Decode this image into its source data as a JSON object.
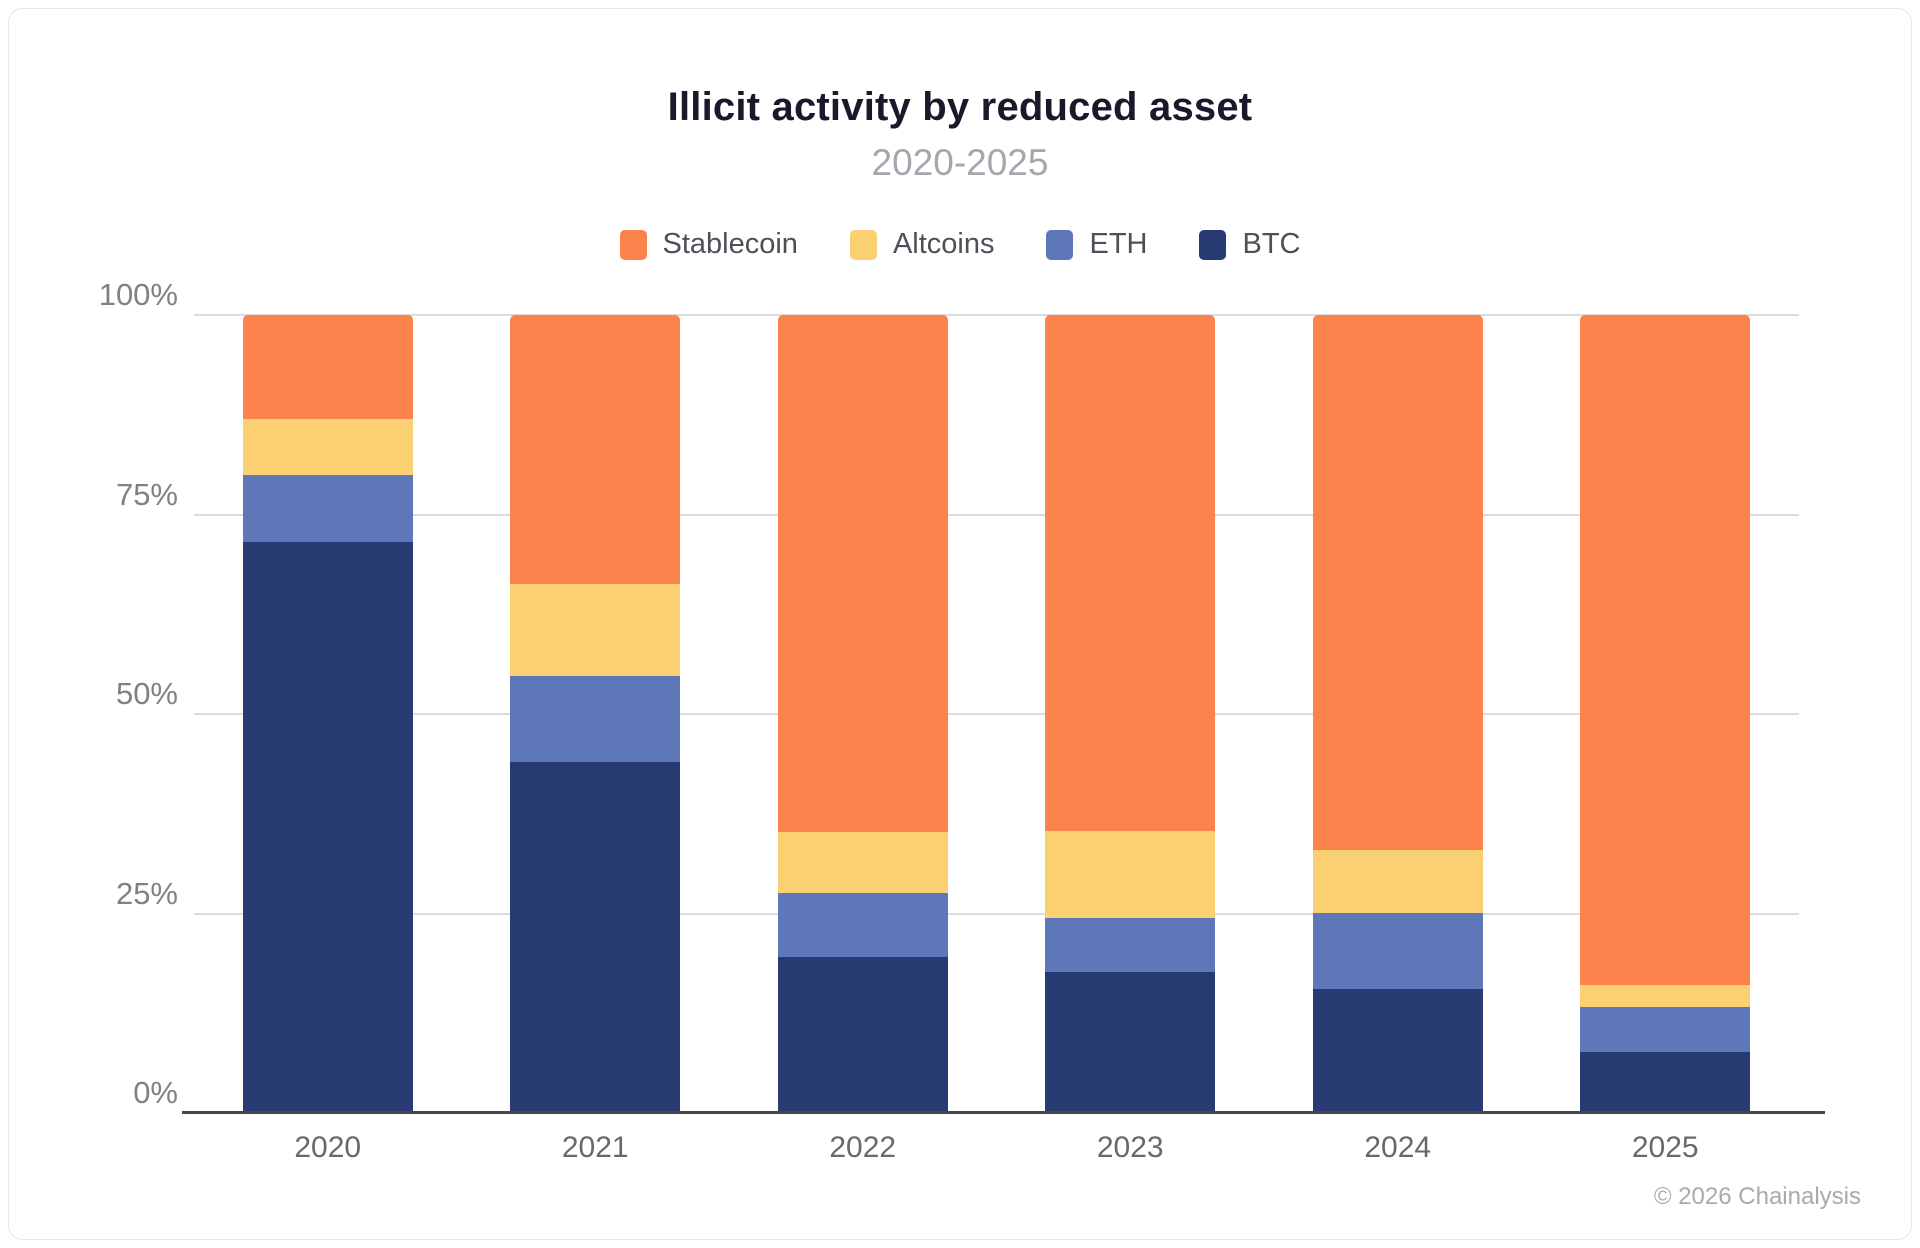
{
  "title": "Illicit activity by reduced asset",
  "subtitle": "2020-2025",
  "footer": "© 2026 Chainalysis",
  "colors": {
    "stablecoin": "#fb824b",
    "altcoins": "#fbd072",
    "eth": "#5d77b8",
    "btc": "#273a72",
    "gridline": "#dcdcdf",
    "axis": "#47474b"
  },
  "legend": [
    {
      "label": "Stablecoin",
      "color": "#fb824b"
    },
    {
      "label": "Altcoins",
      "color": "#fbd072"
    },
    {
      "label": "ETH",
      "color": "#5d77b8"
    },
    {
      "label": "BTC",
      "color": "#273a72"
    }
  ],
  "chart_data": {
    "type": "bar",
    "stacked": true,
    "stack_unit": "percent",
    "title": "Illicit activity by reduced asset",
    "subtitle": "2020-2025",
    "categories": [
      "2020",
      "2021",
      "2022",
      "2023",
      "2024",
      "2025"
    ],
    "series": [
      {
        "name": "BTC",
        "color": "#273a72",
        "values": [
          71.5,
          44.0,
          19.5,
          17.7,
          15.5,
          7.6
        ]
      },
      {
        "name": "ETH",
        "color": "#5d77b8",
        "values": [
          8.5,
          10.7,
          8.1,
          6.7,
          9.6,
          5.7
        ]
      },
      {
        "name": "Altcoins",
        "color": "#fbd072",
        "values": [
          7.0,
          11.6,
          7.6,
          10.9,
          7.8,
          2.7
        ]
      },
      {
        "name": "Stablecoin",
        "color": "#fb824b",
        "values": [
          13.0,
          33.7,
          64.8,
          64.7,
          67.1,
          84.0
        ]
      }
    ],
    "ylim": [
      0,
      100
    ],
    "yticks": [
      {
        "label": "0%",
        "value": 0
      },
      {
        "label": "25%",
        "value": 25
      },
      {
        "label": "50%",
        "value": 50
      },
      {
        "label": "75%",
        "value": 75
      },
      {
        "label": "100%",
        "value": 100
      }
    ],
    "grid": true,
    "legend_position": "top"
  }
}
